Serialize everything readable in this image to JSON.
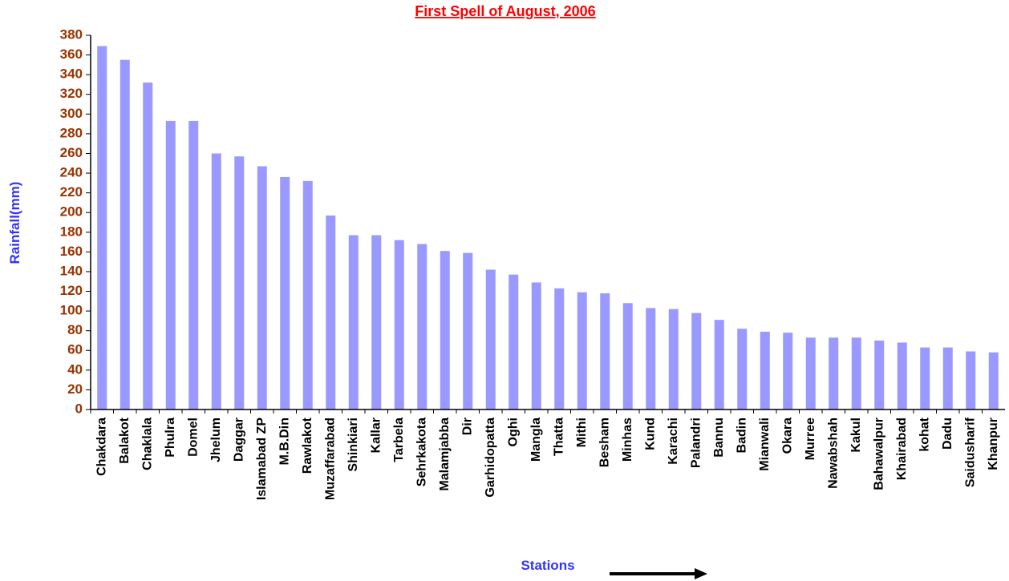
{
  "chart_data": {
    "type": "bar",
    "title": "First Spell of August, 2006",
    "x_label": "Stations",
    "y_label": "Rainfall(mm)",
    "categories": [
      "Chakdara",
      "Balakot",
      "Chaklala",
      "Phulra",
      "Domel",
      "Jhelum",
      "Daggar",
      "Islamabad ZP",
      "M.B.Din",
      "Rawlakot",
      "Muzaffarabad",
      "Shinkiari",
      "Kallar",
      "Tarbela",
      "Sehrkakota",
      "Malamjabba",
      "Dir",
      "Garhidopatta",
      "Oghi",
      "Mangla",
      "Thatta",
      "Mithi",
      "Besham",
      "Minhas",
      "Kund",
      "Karachi",
      "Palandri",
      "Bannu",
      "Badin",
      "Mianwali",
      "Okara",
      "Murree",
      "Nawabshah",
      "Kakul",
      "Bahawalpur",
      "Khairabad",
      "kohat",
      "Dadu",
      "Saidusharif",
      "Khanpur"
    ],
    "values": [
      369,
      355,
      332,
      293,
      293,
      260,
      257,
      247,
      236,
      232,
      197,
      177,
      177,
      172,
      168,
      161,
      159,
      142,
      137,
      129,
      123,
      119,
      118,
      108,
      103,
      102,
      98,
      91,
      82,
      79,
      78,
      73,
      73,
      73,
      70,
      68,
      63,
      63,
      59,
      58
    ],
    "color": "#9999ff",
    "ylim": [
      0,
      380
    ],
    "yticks": [
      0,
      20,
      40,
      60,
      80,
      100,
      120,
      140,
      160,
      180,
      200,
      220,
      240,
      260,
      280,
      300,
      320,
      340,
      360,
      380
    ],
    "grid": false
  }
}
